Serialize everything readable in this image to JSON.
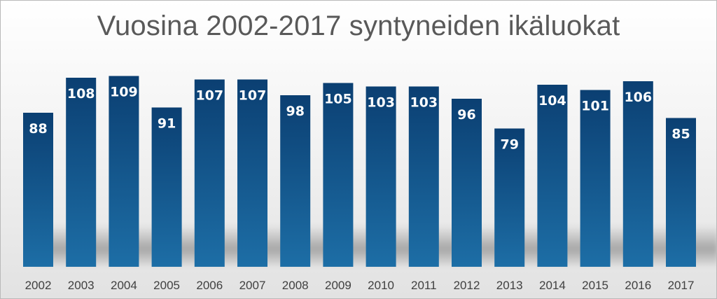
{
  "chart_data": {
    "type": "bar",
    "title": "Vuosina 2002-2017 syntyneiden ikäluokat",
    "xlabel": "",
    "ylabel": "",
    "categories": [
      "2002",
      "2003",
      "2004",
      "2005",
      "2006",
      "2007",
      "2008",
      "2009",
      "2010",
      "2011",
      "2012",
      "2013",
      "2014",
      "2015",
      "2016",
      "2017"
    ],
    "values": [
      88,
      108,
      109,
      91,
      107,
      107,
      98,
      105,
      103,
      103,
      96,
      79,
      104,
      101,
      106,
      85
    ],
    "ylim": [
      0,
      115
    ],
    "grid": false,
    "legend": "none",
    "data_labels": "inside-top",
    "colors": {
      "bar_top": "#0b3f72",
      "bar_bottom": "#1d6ea6",
      "data_label": "#ffffff",
      "tick_label": "#404040",
      "title": "#595959"
    }
  }
}
